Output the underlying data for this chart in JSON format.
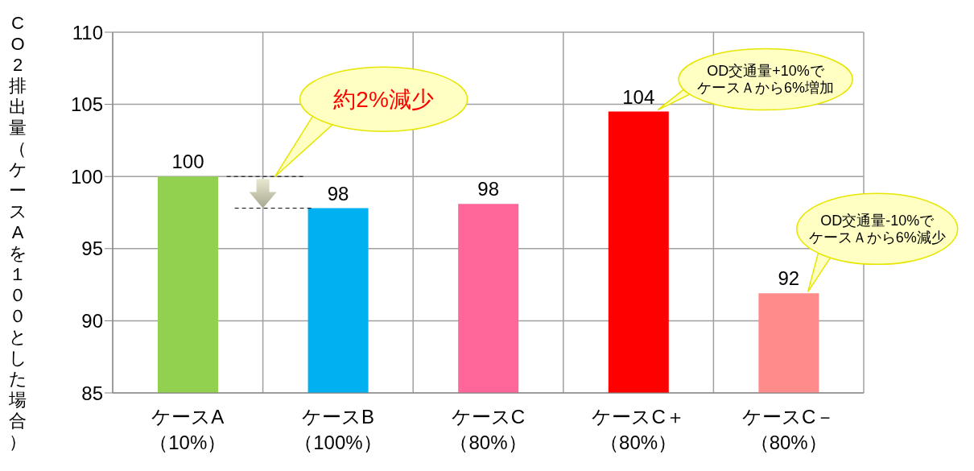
{
  "chart_data": {
    "type": "bar",
    "ylabel": "CO2排出量（ケースAを１００とした場合）",
    "categories": [
      "ケースA（10%）",
      "ケースB（100%）",
      "ケースC（80%）",
      "ケースC＋（80%）",
      "ケースC－（80%）"
    ],
    "values": [
      100,
      97.8,
      98.1,
      104.5,
      91.9
    ],
    "colors": [
      "#92d050",
      "#00b0f0",
      "#ff6699",
      "#ff0000",
      "#ff8b8b"
    ],
    "value_labels": [
      "100",
      "98",
      "98",
      "104",
      "92"
    ],
    "ylim": [
      85,
      110
    ],
    "yticks": [
      85,
      90,
      95,
      100,
      105,
      110
    ],
    "grid": true,
    "annotations": [
      "約2%減少",
      "OD交通量+10%でケースＡから6%増加",
      "OD交通量-10%でケースＡから6%減少"
    ]
  }
}
